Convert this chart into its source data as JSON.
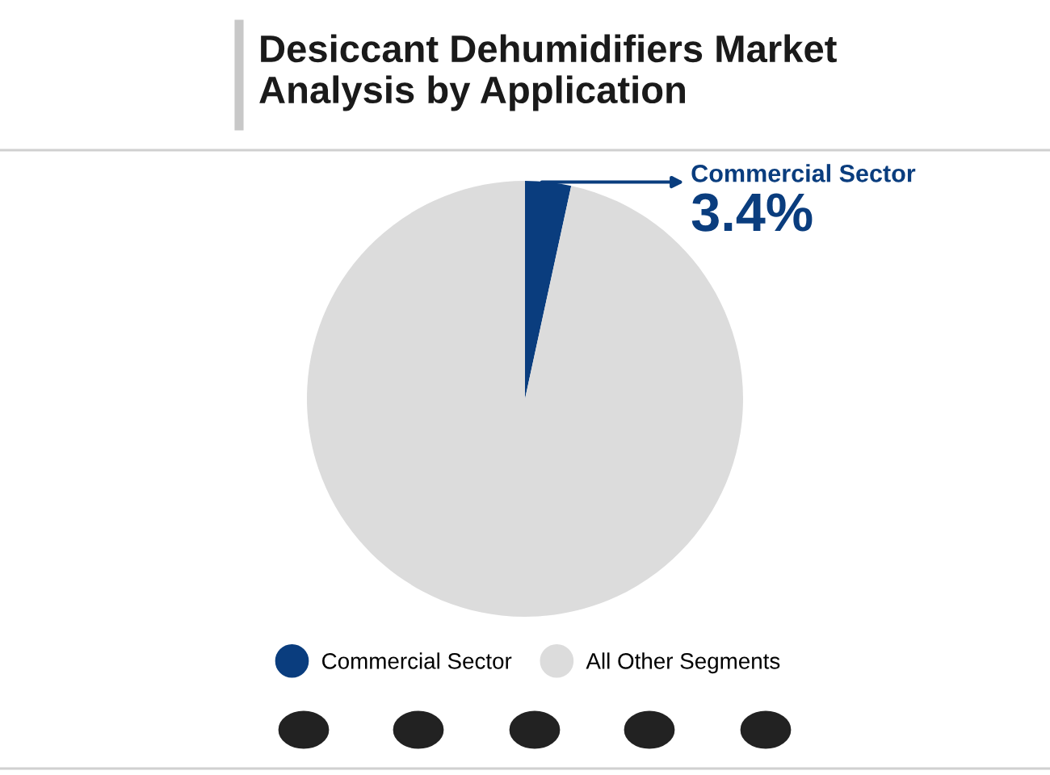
{
  "chart_data": {
    "type": "pie",
    "title": "Desiccant Dehumidifiers Market\nAnalysis by Application",
    "categories": [
      "Commercial Sector",
      "All Other Segments"
    ],
    "values": [
      3.4,
      96.6
    ],
    "colors": [
      "#0a3d7e",
      "#dcdcdc"
    ],
    "value_labels": [
      "3.4%",
      null
    ],
    "legend": "bottom"
  }
}
